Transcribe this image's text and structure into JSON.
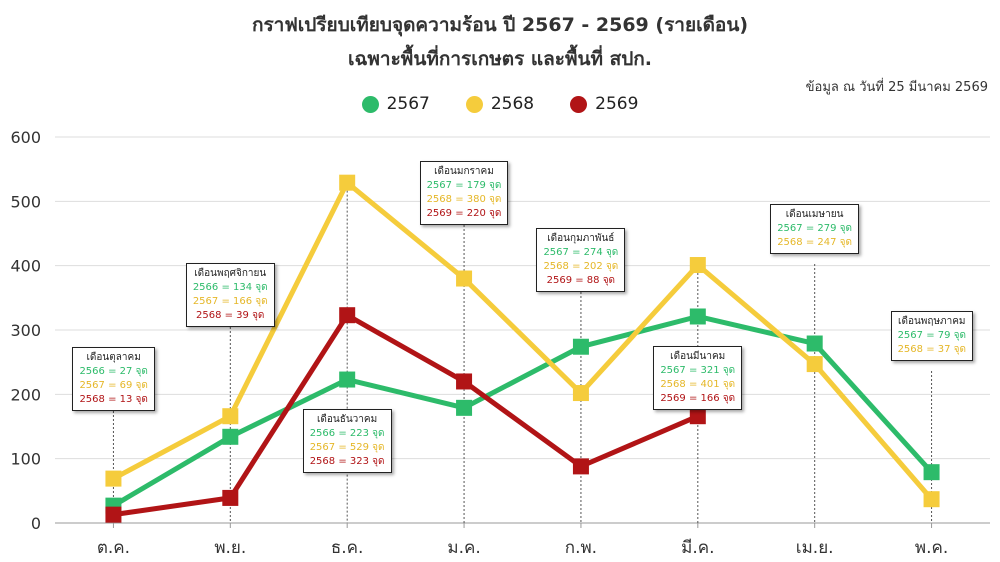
{
  "chart_data": {
    "type": "line",
    "title": "กราฟเปรียบเทียบจุดความร้อน ปี 2567 - 2569 (รายเดือน)",
    "subtitle": "เฉพาะพื้นที่การเกษตร และพื้นที่ สปก.",
    "note": "ข้อมูล ณ วันที่ 25 มีนาคม 2569",
    "categories": [
      "ต.ค.",
      "พ.ย.",
      "ธ.ค.",
      "ม.ค.",
      "ก.พ.",
      "มี.ค.",
      "เม.ย.",
      "พ.ค."
    ],
    "ylim": [
      0,
      600
    ],
    "yticks": [
      0,
      100,
      200,
      300,
      400,
      500,
      600
    ],
    "grid": true,
    "legend_position": "top",
    "series": [
      {
        "name": "2567",
        "color": "#2dbb6a",
        "values": [
          27,
          134,
          223,
          179,
          274,
          321,
          279,
          79
        ]
      },
      {
        "name": "2568",
        "color": "#f5cc3c",
        "values": [
          69,
          166,
          529,
          380,
          202,
          401,
          247,
          37
        ]
      },
      {
        "name": "2569",
        "color": "#b11416",
        "values": [
          13,
          39,
          323,
          220,
          88,
          166,
          null,
          null
        ]
      }
    ],
    "annotations": [
      {
        "category_index": 0,
        "title": "เดือนตุลาคม",
        "lines": [
          {
            "text": "2566 = 27 จุด",
            "color": "#2dbb6a"
          },
          {
            "text": "2567 = 69 จุด",
            "color": "#e5b728"
          },
          {
            "text": "2568 = 13 จุด",
            "color": "#b11416"
          }
        ]
      },
      {
        "category_index": 1,
        "title": "เดือนพฤศจิกายน",
        "lines": [
          {
            "text": "2566 = 134 จุด",
            "color": "#2dbb6a"
          },
          {
            "text": "2567 = 166 จุด",
            "color": "#e5b728"
          },
          {
            "text": "2568 = 39 จุด",
            "color": "#b11416"
          }
        ]
      },
      {
        "category_index": 2,
        "title": "เดือนธันวาคม",
        "lines": [
          {
            "text": "2566 = 223 จุด",
            "color": "#2dbb6a"
          },
          {
            "text": "2567 = 529 จุด",
            "color": "#e5b728"
          },
          {
            "text": "2568 = 323 จุด",
            "color": "#b11416"
          }
        ]
      },
      {
        "category_index": 3,
        "title": "เดือนมกราคม",
        "lines": [
          {
            "text": "2567 = 179 จุด",
            "color": "#2dbb6a"
          },
          {
            "text": "2568 = 380 จุด",
            "color": "#e5b728"
          },
          {
            "text": "2569 = 220 จุด",
            "color": "#b11416"
          }
        ]
      },
      {
        "category_index": 4,
        "title": "เดือนกุมภาพันธ์",
        "lines": [
          {
            "text": "2567 = 274 จุด",
            "color": "#2dbb6a"
          },
          {
            "text": "2568 = 202 จุด",
            "color": "#e5b728"
          },
          {
            "text": "2569 = 88 จุด",
            "color": "#b11416"
          }
        ]
      },
      {
        "category_index": 5,
        "title": "เดือนมีนาคม",
        "lines": [
          {
            "text": "2567 = 321 จุด",
            "color": "#2dbb6a"
          },
          {
            "text": "2568 = 401 จุด",
            "color": "#e5b728"
          },
          {
            "text": "2569 = 166 จุด",
            "color": "#b11416"
          }
        ]
      },
      {
        "category_index": 6,
        "title": "เดือนเมษายน",
        "lines": [
          {
            "text": "2567 = 279 จุด",
            "color": "#2dbb6a"
          },
          {
            "text": "2568 = 247 จุด",
            "color": "#e5b728"
          }
        ]
      },
      {
        "category_index": 7,
        "title": "เดือนพฤษภาคม",
        "lines": [
          {
            "text": "2567 = 79 จุด",
            "color": "#2dbb6a"
          },
          {
            "text": "2568 = 37 จุด",
            "color": "#e5b728"
          }
        ]
      }
    ]
  }
}
